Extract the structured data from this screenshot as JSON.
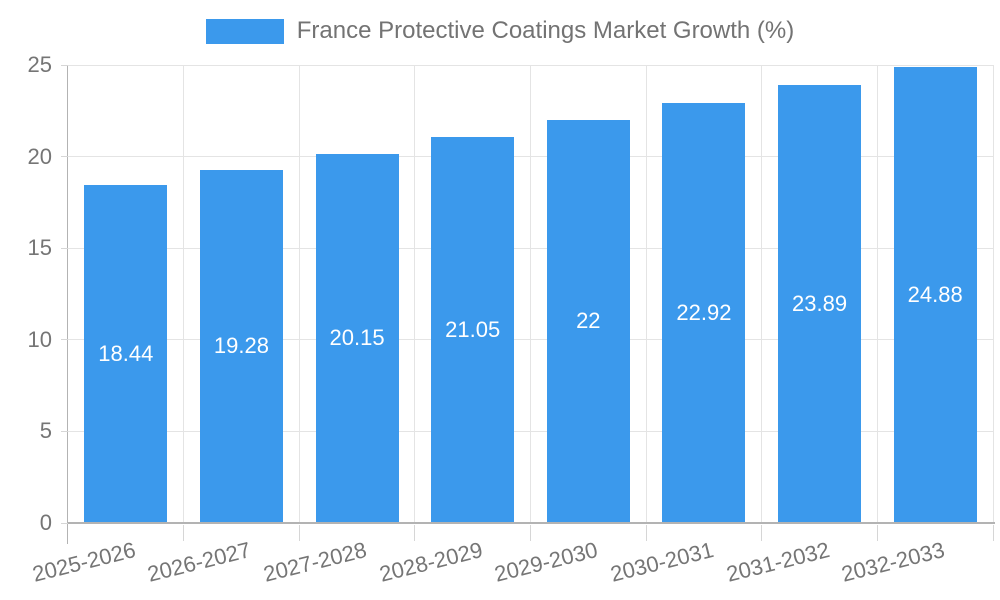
{
  "legend": {
    "label": "France Protective Coatings Market Growth (%)",
    "swatch_color": "#3b99ec"
  },
  "chart_data": {
    "type": "bar",
    "title": "France Protective Coatings Market Growth (%)",
    "categories": [
      "2025-2026",
      "2026-2027",
      "2027-2028",
      "2028-2029",
      "2029-2030",
      "2030-2031",
      "2031-2032",
      "2032-2033"
    ],
    "values": [
      18.44,
      19.28,
      20.15,
      21.05,
      22,
      22.92,
      23.89,
      24.88
    ],
    "series": [
      {
        "name": "France Protective Coatings Market Growth (%)",
        "values": [
          18.44,
          19.28,
          20.15,
          21.05,
          22,
          22.92,
          23.89,
          24.88
        ]
      }
    ],
    "xlabel": "",
    "ylabel": "",
    "ylim": [
      0,
      25
    ],
    "yticks": [
      0,
      5,
      10,
      15,
      20,
      25
    ],
    "grid": true,
    "legend_position": "top",
    "x_label_rotation_deg": -14,
    "bar_color": "#3b99ec",
    "value_label_color": "#ffffff",
    "axis_color": "#b3b3b3",
    "grid_color": "#e4e4e4",
    "tick_text_color": "#757575",
    "background_color": "#ffffff"
  }
}
